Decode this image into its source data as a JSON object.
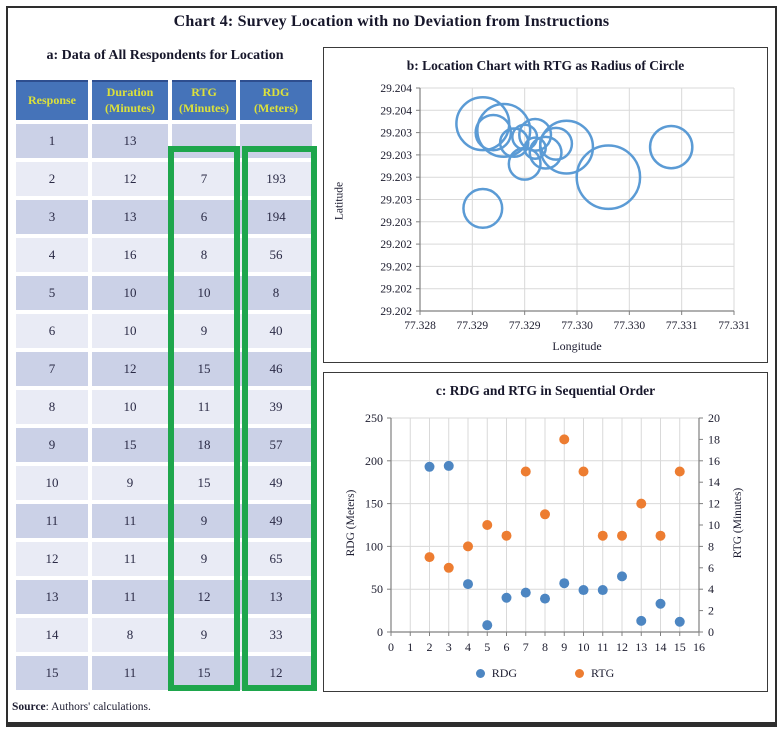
{
  "title": "Chart 4: Survey Location with no Deviation from Instructions",
  "source": {
    "label": "Source",
    "text": ": Authors' calculations."
  },
  "colors": {
    "header_blue": "#4573b9",
    "header_yellow": "#dce13a",
    "row_dark": "#cbd1e7",
    "row_light": "#e9ebf5",
    "highlight_green": "#1ea64c",
    "bubble_blue": "#5B9BD5",
    "rdg_blue": "#4d86c2",
    "rtg_orange": "#ED7D31",
    "gridline": "#d9d9d9",
    "axis": "#808080"
  },
  "table_panel": {
    "title": "a: Data of All Respondents for Location",
    "columns": [
      {
        "label": "Response",
        "sub": ""
      },
      {
        "label": "Duration",
        "sub": "(Minutes)"
      },
      {
        "label": "RTG",
        "sub": "(Minutes)"
      },
      {
        "label": "RDG",
        "sub": "(Meters)"
      }
    ],
    "highlighted_columns": [
      "RTG (Minutes)",
      "RDG (Meters)"
    ],
    "rows": [
      [
        "1",
        "13",
        "",
        ""
      ],
      [
        "2",
        "12",
        "7",
        "193"
      ],
      [
        "3",
        "13",
        "6",
        "194"
      ],
      [
        "4",
        "16",
        "8",
        "56"
      ],
      [
        "5",
        "10",
        "10",
        "8"
      ],
      [
        "6",
        "10",
        "9",
        "40"
      ],
      [
        "7",
        "12",
        "15",
        "46"
      ],
      [
        "8",
        "10",
        "11",
        "39"
      ],
      [
        "9",
        "15",
        "18",
        "57"
      ],
      [
        "10",
        "9",
        "15",
        "49"
      ],
      [
        "11",
        "11",
        "9",
        "49"
      ],
      [
        "12",
        "11",
        "9",
        "65"
      ],
      [
        "13",
        "11",
        "12",
        "13"
      ],
      [
        "14",
        "8",
        "9",
        "33"
      ],
      [
        "15",
        "11",
        "15",
        "12"
      ]
    ]
  },
  "chart_data": [
    {
      "id": "b",
      "type": "scatter",
      "subtype": "bubble",
      "title": "b: Location Chart with RTG as Radius of Circle",
      "xlabel": "Longitude",
      "ylabel": "Latitude",
      "xlim": [
        77.328,
        77.331
      ],
      "ylim": [
        29.202,
        29.204
      ],
      "xtick_labels": [
        "77.328",
        "77.329",
        "77.329",
        "77.330",
        "77.330",
        "77.331",
        "77.331"
      ],
      "ytick_labels_top_to_bottom": [
        "29.204",
        "29.204",
        "29.203",
        "29.203",
        "29.203",
        "29.203",
        "29.203",
        "29.202",
        "29.202",
        "29.202",
        "29.202"
      ],
      "grid": true,
      "radius_is": "RTG (Minutes)",
      "points_estimated": [
        {
          "lon": 77.329,
          "lat": 29.20356,
          "rtg": 7
        },
        {
          "lon": 77.3291,
          "lat": 29.20346,
          "rtg": 6
        },
        {
          "lon": 77.3289,
          "lat": 29.20351,
          "rtg": 8
        },
        {
          "lon": 77.3287,
          "lat": 29.2036,
          "rtg": 10
        },
        {
          "lon": 77.3293,
          "lat": 29.2035,
          "rtg": 9
        },
        {
          "lon": 77.3286,
          "lat": 29.20368,
          "rtg": 15
        },
        {
          "lon": 77.3286,
          "lat": 29.20292,
          "rtg": 11
        },
        {
          "lon": 77.3298,
          "lat": 29.2032,
          "rtg": 18
        },
        {
          "lon": 77.3288,
          "lat": 29.20362,
          "rtg": 15
        },
        {
          "lon": 77.3292,
          "lat": 29.20342,
          "rtg": 9
        },
        {
          "lon": 77.329,
          "lat": 29.20332,
          "rtg": 9
        },
        {
          "lon": 77.3304,
          "lat": 29.20347,
          "rtg": 12
        },
        {
          "lon": 77.3291,
          "lat": 29.20358,
          "rtg": 9
        },
        {
          "lon": 77.3294,
          "lat": 29.20347,
          "rtg": 15
        }
      ]
    },
    {
      "id": "c",
      "type": "scatter",
      "title": "c: RDG and RTG in Sequential Order",
      "xlabel": "",
      "ylabel_left": "RDG (Meters)",
      "ylabel_right": "RTG (Minutes)",
      "xlim": [
        0,
        16
      ],
      "xticks": [
        0,
        1,
        2,
        3,
        4,
        5,
        6,
        7,
        8,
        9,
        10,
        11,
        12,
        13,
        14,
        15,
        16
      ],
      "left_ylim": [
        0,
        250
      ],
      "left_ticks": [
        0,
        50,
        100,
        150,
        200,
        250
      ],
      "right_ylim": [
        0,
        20
      ],
      "right_ticks": [
        0,
        2,
        4,
        6,
        8,
        10,
        12,
        14,
        16,
        18,
        20
      ],
      "grid": true,
      "legend_position": "bottom",
      "x": [
        2,
        3,
        4,
        5,
        6,
        7,
        8,
        9,
        10,
        11,
        12,
        13,
        14,
        15
      ],
      "series": [
        {
          "name": "RDG",
          "axis": "left",
          "color": "#4d86c2",
          "values": [
            193,
            194,
            56,
            8,
            40,
            46,
            39,
            57,
            49,
            49,
            65,
            13,
            33,
            12
          ]
        },
        {
          "name": "RTG",
          "axis": "right",
          "color": "#ED7D31",
          "values": [
            7,
            6,
            8,
            10,
            9,
            15,
            11,
            18,
            15,
            9,
            9,
            12,
            9,
            15
          ]
        }
      ]
    }
  ]
}
